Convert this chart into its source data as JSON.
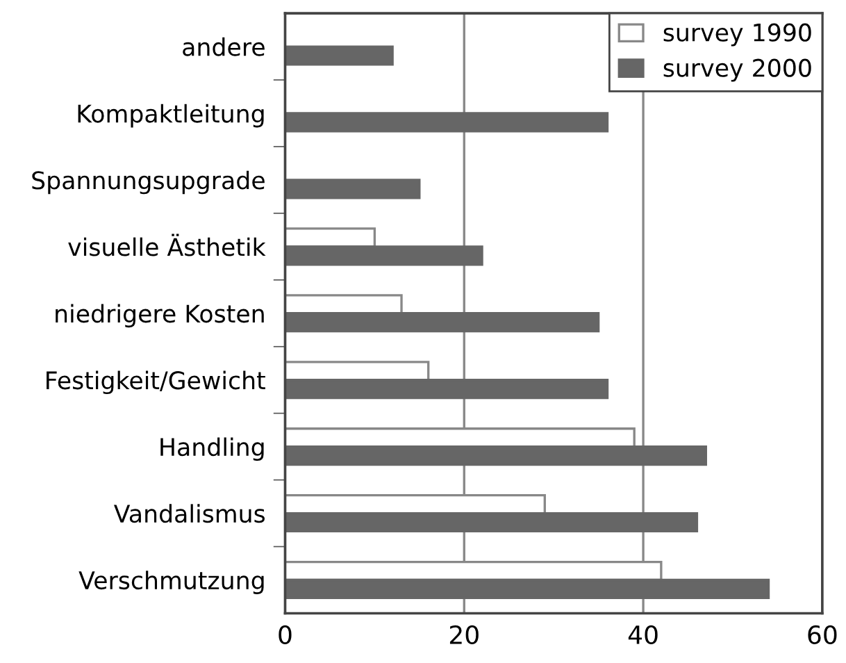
{
  "chart_data": {
    "type": "bar",
    "orientation": "horizontal",
    "categories": [
      "andere",
      "Kompaktleitung",
      "Spannungsupgrade",
      "visuelle Ästhetik",
      "niedrigere Kosten",
      "Festigkeit/Gewicht",
      "Handling",
      "Vandalismus",
      "Verschmutzung"
    ],
    "series": [
      {
        "name": "survey 1990",
        "color": "#ffffff",
        "values": [
          null,
          null,
          null,
          10,
          13,
          16,
          39,
          29,
          42
        ]
      },
      {
        "name": "survey 2000",
        "color": "#666666",
        "values": [
          12,
          36,
          15,
          22,
          35,
          36,
          47,
          46,
          54
        ]
      }
    ],
    "xlim": [
      0,
      60
    ],
    "xticks": [
      0,
      20,
      40,
      60
    ],
    "grid": "x",
    "legend": "top right"
  }
}
